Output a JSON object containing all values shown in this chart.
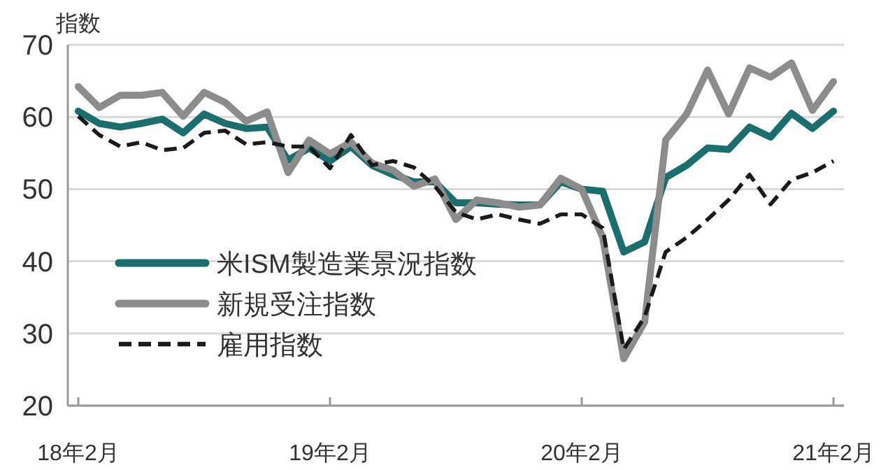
{
  "chart_data": {
    "type": "line",
    "ylabel": "指数",
    "categories": [
      "18年2月",
      null,
      null,
      null,
      null,
      null,
      null,
      null,
      null,
      null,
      null,
      null,
      "19年2月",
      null,
      null,
      null,
      null,
      null,
      null,
      null,
      null,
      null,
      null,
      null,
      "20年2月",
      null,
      null,
      null,
      null,
      null,
      null,
      null,
      null,
      null,
      null,
      null,
      "21年2月"
    ],
    "series": [
      {
        "name": "米ISM製造業景況指数",
        "color": "#1a6e6e",
        "values": [
          60.8,
          59.1,
          58.6,
          59.1,
          59.7,
          57.8,
          60.4,
          59.1,
          58.4,
          58.6,
          54,
          55.7,
          53.9,
          55.9,
          53.3,
          52,
          51,
          51,
          48.1,
          48.1,
          47.9,
          47.8,
          47.8,
          51,
          50,
          49.7,
          41.3,
          42.7,
          51.6,
          53.3,
          55.7,
          55.5,
          58.6,
          57.2,
          60.5,
          58.4,
          60.8
        ]
      },
      {
        "name": "新規受注指数",
        "color": "#8c8c8c",
        "values": [
          64.2,
          61.3,
          63,
          63,
          63.4,
          60.1,
          63.4,
          62,
          59.4,
          60.7,
          52.3,
          56.8,
          54.9,
          56.5,
          53.6,
          52.6,
          50.4,
          51.4,
          45.8,
          48.5,
          48.1,
          47.5,
          47.8,
          51.5,
          50,
          43.3,
          26.5,
          31.6,
          56.8,
          60.4,
          66.5,
          60.4,
          66.8,
          65.5,
          67.5,
          60.9,
          64.9
        ]
      },
      {
        "name": "雇用指数",
        "color": "#1a1a1a",
        "line_style": "dashed",
        "values": [
          60.1,
          57.5,
          55.9,
          56.5,
          55.4,
          55.7,
          57.8,
          58.1,
          56.2,
          56.5,
          55.9,
          55.9,
          52.9,
          57.5,
          53.3,
          53.9,
          53,
          50.4,
          46.8,
          45.8,
          46.5,
          45.8,
          45.2,
          46.5,
          46.5,
          44.6,
          27.8,
          32.3,
          41.3,
          43.3,
          45.8,
          48.5,
          52,
          47.9,
          51.3,
          52.3,
          53.9
        ]
      }
    ],
    "ylim": [
      20,
      70
    ],
    "yticks": [
      20,
      30,
      40,
      50,
      60,
      70
    ],
    "grid": "y",
    "legend": "bottom left"
  }
}
